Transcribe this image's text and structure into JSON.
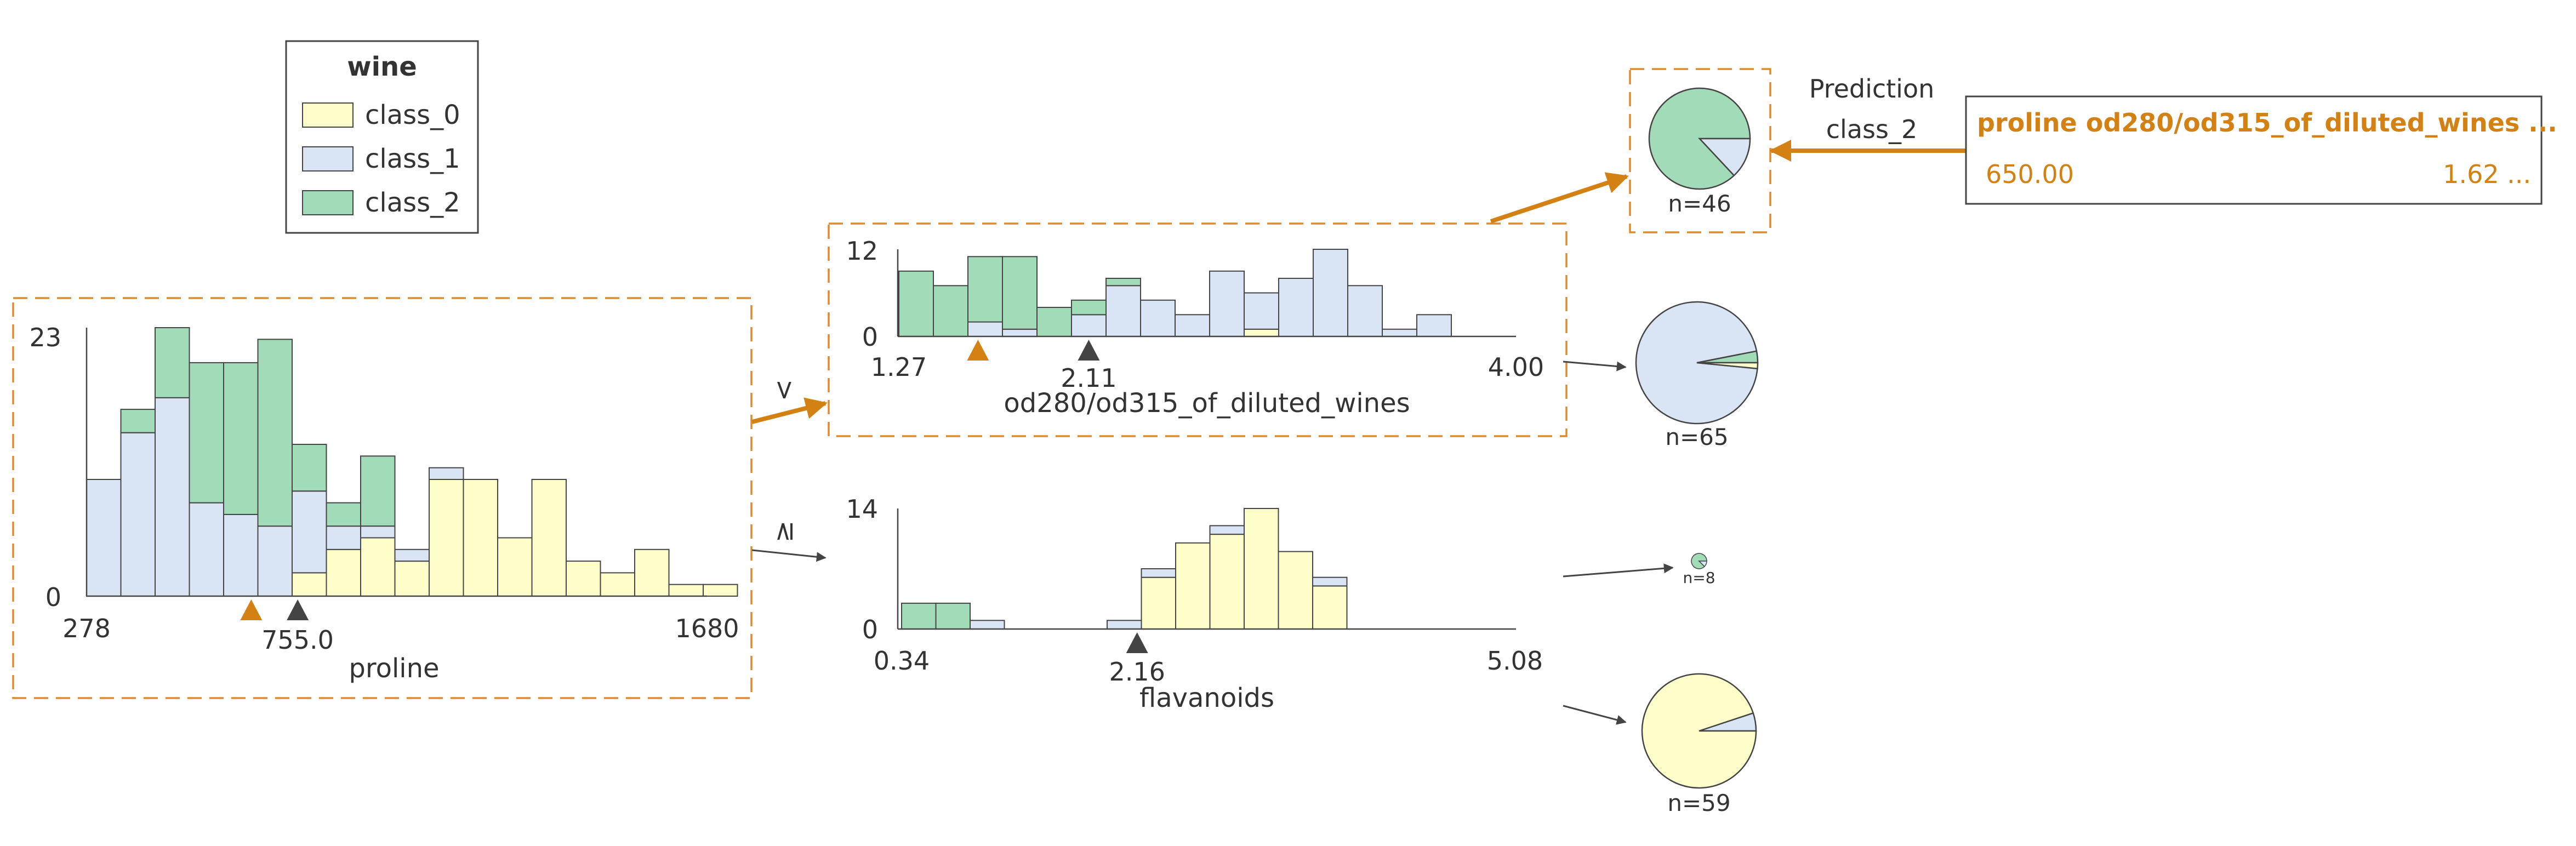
{
  "title": "wine",
  "colors": {
    "class_0": "#fefecb",
    "class_1": "#d9e4f4",
    "class_2": "#a1dbb7",
    "path": "#d48114",
    "text": "#333333",
    "bar_stroke": "#444444",
    "box_dash": "#de8b2f"
  },
  "legend": {
    "title": "wine",
    "items": [
      "class_0",
      "class_1",
      "class_2"
    ]
  },
  "split_labels": {
    "lt": "<",
    "ge": "≥"
  },
  "prediction": {
    "title": "Prediction",
    "value": "class_2"
  },
  "instance": {
    "header": "proline od280/od315_of_diluted_wines ...",
    "value_1": "650.00",
    "value_2": "1.62 ...",
    "features": [
      "proline",
      "od280/od315_of_diluted_wines"
    ],
    "values": [
      650.0,
      1.62
    ]
  },
  "leaves": {
    "leaf_a": {
      "label": "n=46",
      "counts": {
        "class_0": 0,
        "class_1": 6,
        "class_2": 40
      }
    },
    "leaf_b": {
      "label": "n=65",
      "counts": {
        "class_0": 1,
        "class_1": 62,
        "class_2": 2
      }
    },
    "leaf_c": {
      "label": "n=8",
      "counts": {
        "class_0": 0,
        "class_1": 1,
        "class_2": 7
      }
    },
    "leaf_d": {
      "label": "n=59",
      "counts": {
        "class_0": 56,
        "class_1": 3,
        "class_2": 0
      }
    }
  },
  "chart_data": [
    {
      "type": "bar",
      "id": "root",
      "xlabel": "proline",
      "x_range": [
        278,
        1680
      ],
      "x_tick_labels": [
        "278",
        "755.0",
        "1680"
      ],
      "y_range": [
        0,
        23
      ],
      "y_tick_labels": [
        "0",
        "23"
      ],
      "split_value": 755.0,
      "instance_value": 650.0,
      "stacked": true,
      "series": [
        {
          "name": "class_0",
          "values": [
            0,
            0,
            0,
            0,
            0,
            0,
            2,
            4,
            5,
            3,
            10,
            10,
            5,
            10,
            3,
            2,
            4,
            1,
            1
          ]
        },
        {
          "name": "class_1",
          "values": [
            10,
            14,
            17,
            8,
            7,
            6,
            7,
            2,
            1,
            1,
            1,
            0,
            0,
            0,
            0,
            0,
            0,
            0,
            0
          ]
        },
        {
          "name": "class_2",
          "values": [
            0,
            2,
            6,
            12,
            13,
            16,
            4,
            2,
            6,
            0,
            0,
            0,
            0,
            0,
            0,
            0,
            0,
            0,
            0
          ]
        }
      ]
    },
    {
      "type": "bar",
      "id": "left",
      "xlabel": "od280/od315_of_diluted_wines",
      "x_range": [
        1.27,
        4.0
      ],
      "x_tick_labels": [
        "1.27",
        "2.11",
        "4.00"
      ],
      "y_range": [
        0,
        12
      ],
      "y_tick_labels": [
        "0",
        "12"
      ],
      "split_value": 2.11,
      "instance_value": 1.62,
      "stacked": true,
      "series": [
        {
          "name": "class_0",
          "values": [
            0,
            0,
            0,
            0,
            0,
            0,
            0,
            0,
            0,
            0,
            1,
            0,
            0,
            0,
            0,
            0
          ]
        },
        {
          "name": "class_1",
          "values": [
            0,
            0,
            2,
            1,
            0,
            3,
            7,
            5,
            3,
            9,
            5,
            8,
            12,
            7,
            1,
            3
          ]
        },
        {
          "name": "class_2",
          "values": [
            9,
            7,
            9,
            10,
            4,
            2,
            1,
            0,
            0,
            0,
            0,
            0,
            0,
            0,
            0,
            0
          ]
        }
      ]
    },
    {
      "type": "bar",
      "id": "right",
      "xlabel": "flavanoids",
      "x_range": [
        0.34,
        5.08
      ],
      "x_tick_labels": [
        "0.34",
        "2.16",
        "5.08"
      ],
      "y_range": [
        0,
        14
      ],
      "y_tick_labels": [
        "0",
        "14"
      ],
      "split_value": 2.16,
      "stacked": true,
      "series": [
        {
          "name": "class_0",
          "values": [
            0,
            0,
            0,
            0,
            0,
            0,
            0,
            6,
            10,
            11,
            14,
            9,
            5,
            0,
            0,
            0,
            0,
            0
          ]
        },
        {
          "name": "class_1",
          "values": [
            0,
            0,
            1,
            0,
            0,
            0,
            1,
            1,
            0,
            1,
            0,
            0,
            1,
            0,
            0,
            0,
            0,
            0
          ]
        },
        {
          "name": "class_2",
          "values": [
            3,
            3,
            0,
            0,
            0,
            0,
            0,
            0,
            0,
            0,
            0,
            0,
            0,
            0,
            0,
            0,
            0,
            0
          ]
        }
      ]
    }
  ]
}
